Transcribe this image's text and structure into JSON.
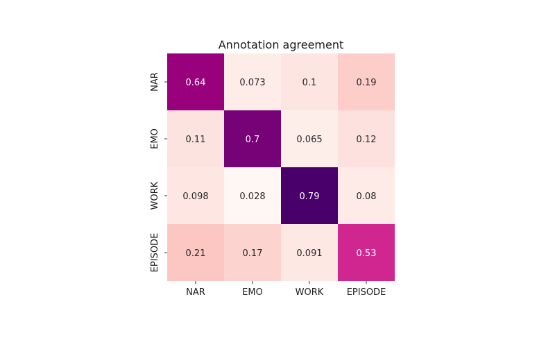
{
  "chart_data": {
    "type": "heatmap",
    "title": "Annotation agreement",
    "xlabel": "",
    "ylabel": "",
    "x_categories": [
      "NAR",
      "EMO",
      "WORK",
      "EPISODE"
    ],
    "y_categories": [
      "NAR",
      "EMO",
      "WORK",
      "EPISODE"
    ],
    "values": [
      [
        0.64,
        0.073,
        0.1,
        0.19
      ],
      [
        0.11,
        0.7,
        0.065,
        0.12
      ],
      [
        0.098,
        0.028,
        0.79,
        0.08
      ],
      [
        0.21,
        0.17,
        0.091,
        0.53
      ]
    ],
    "value_labels": [
      [
        "0.64",
        "0.073",
        "0.1",
        "0.19"
      ],
      [
        "0.11",
        "0.7",
        "0.065",
        "0.12"
      ],
      [
        "0.098",
        "0.028",
        "0.79",
        "0.08"
      ],
      [
        "0.21",
        "0.17",
        "0.091",
        "0.53"
      ]
    ],
    "colormap": "RdPu",
    "color_stops": [
      "#fff7f3",
      "#fde0dd",
      "#fcc5c0",
      "#fa9fb5",
      "#f768a1",
      "#dd3497",
      "#ae017e",
      "#7a0177",
      "#49006a"
    ],
    "color_range": [
      0.028,
      0.79
    ],
    "colorbar": false,
    "grid": false
  }
}
